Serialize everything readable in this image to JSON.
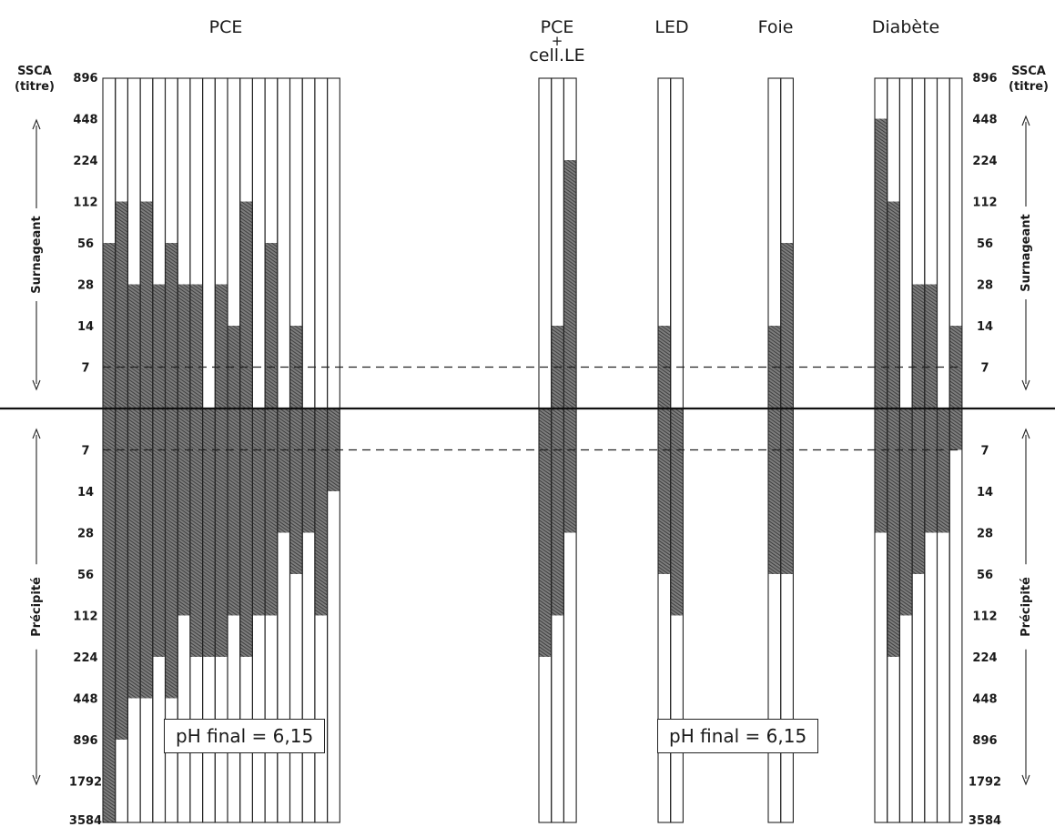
{
  "chart_data": {
    "type": "bar",
    "y_axis_title_left": "SSCA\n(titre)",
    "y_axis_title_right": "SSCA\n(titre)",
    "upper_axis_label": "Surnageant",
    "lower_axis_label": "Précipité",
    "upper_ticks": [
      "896",
      "448",
      "224",
      "112",
      "56",
      "28",
      "14",
      "7"
    ],
    "lower_ticks": [
      "7",
      "14",
      "28",
      "56",
      "112",
      "224",
      "448",
      "896",
      "1792",
      "3584"
    ],
    "groups": [
      {
        "name": "PCE",
        "surnageant": [
          56,
          112,
          28,
          112,
          28,
          56,
          28,
          28,
          0,
          28,
          14,
          112,
          0,
          56,
          0,
          14,
          0,
          0,
          0
        ],
        "precipite": [
          3584,
          896,
          448,
          448,
          224,
          448,
          112,
          224,
          224,
          224,
          112,
          224,
          112,
          112,
          28,
          56,
          28,
          112,
          14
        ]
      },
      {
        "name": "PCE\n+\ncell.LE",
        "surnageant": [
          0,
          14,
          224
        ],
        "precipite": [
          224,
          112,
          28
        ]
      },
      {
        "name": "LED",
        "surnageant": [
          14,
          0
        ],
        "precipite": [
          56,
          112
        ]
      },
      {
        "name": "Foie",
        "surnageant": [
          14,
          56
        ],
        "precipite": [
          56,
          56
        ]
      },
      {
        "name": "Diabète",
        "surnageant": [
          448,
          112,
          0,
          28,
          28,
          0,
          14
        ],
        "precipite": [
          28,
          224,
          112,
          56,
          28,
          28,
          7
        ]
      }
    ],
    "annotations": [
      "pH final = 6,15",
      "pH final = 6,15"
    ]
  }
}
